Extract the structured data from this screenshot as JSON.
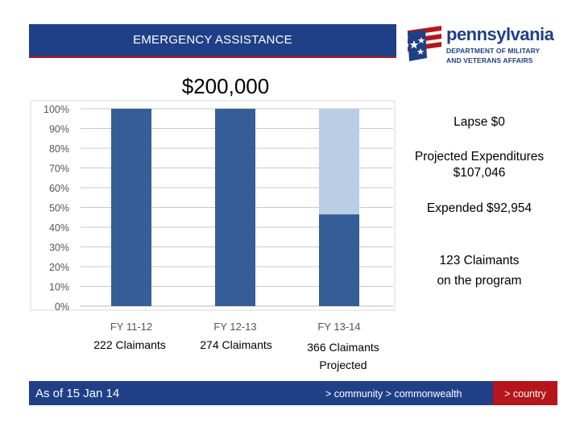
{
  "header": {
    "title": "EMERGENCY ASSISTANCE"
  },
  "logo": {
    "name": "pennsylvania",
    "subtitle_line1": "DEPARTMENT OF MILITARY",
    "subtitle_line2": "AND VETERANS AFFAIRS",
    "colors": {
      "blue": "#1f3f87",
      "red": "#b5161b"
    }
  },
  "total_label": "$200,000",
  "annotations": {
    "lapse": "Lapse $0",
    "projected_line1": "Projected Expenditures",
    "projected_line2": "$107,046",
    "expended": "Expended $92,954",
    "claimants_line1": "123 Claimants",
    "claimants_line2": "on the program"
  },
  "claimants": [
    {
      "line1": "222 Claimants",
      "line2": ""
    },
    {
      "line1": "274 Claimants",
      "line2": ""
    },
    {
      "line1": "366 Claimants",
      "line2": "Projected"
    }
  ],
  "chart_data": {
    "type": "bar",
    "stacked": true,
    "categories": [
      "FY 11-12",
      "FY 12-13",
      "FY 13-14"
    ],
    "series": [
      {
        "values": [
          100,
          100,
          46.5
        ],
        "color": "#365e96"
      },
      {
        "values": [
          0,
          0,
          53.5
        ],
        "color": "#b9cde5"
      }
    ],
    "ylim": [
      0,
      100
    ],
    "yticks": [
      0,
      10,
      20,
      30,
      40,
      50,
      60,
      70,
      80,
      90,
      100
    ],
    "ytick_labels": [
      "0%",
      "10%",
      "20%",
      "30%",
      "40%",
      "50%",
      "60%",
      "70%",
      "80%",
      "90%",
      "100%"
    ],
    "grid": true,
    "title": "",
    "xlabel": "",
    "ylabel": ""
  },
  "footer": {
    "date": "As of 15 Jan 14",
    "tagline": "> community > commonwealth",
    "country": "> country"
  }
}
